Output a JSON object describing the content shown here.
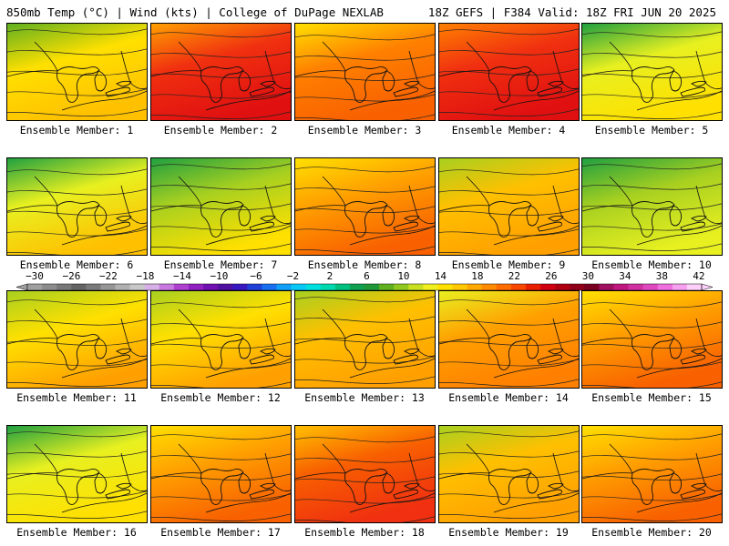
{
  "header": {
    "left_title": "850mb Temp (°C) | Wind (kts) | College of DuPage NEXLAB",
    "right_title": "18Z GEFS | F384 Valid: 18Z FRI JUN 20 2025"
  },
  "panels": [
    {
      "label": "Ensemble Member: 1",
      "level": 0.35
    },
    {
      "label": "Ensemble Member: 2",
      "level": 0.85
    },
    {
      "label": "Ensemble Member: 3",
      "level": 0.65
    },
    {
      "label": "Ensemble Member: 4",
      "level": 0.9
    },
    {
      "label": "Ensemble Member: 5",
      "level": 0.25
    },
    {
      "label": "Ensemble Member: 6",
      "level": 0.3
    },
    {
      "label": "Ensemble Member: 7",
      "level": 0.2
    },
    {
      "label": "Ensemble Member: 8",
      "level": 0.6
    },
    {
      "label": "Ensemble Member: 9",
      "level": 0.45
    },
    {
      "label": "Ensemble Member: 10",
      "level": 0.15
    },
    {
      "label": "Ensemble Member: 11",
      "level": 0.4
    },
    {
      "label": "Ensemble Member: 12",
      "level": 0.4
    },
    {
      "label": "Ensemble Member: 13",
      "level": 0.45
    },
    {
      "label": "Ensemble Member: 14",
      "level": 0.55
    },
    {
      "label": "Ensemble Member: 15",
      "level": 0.6
    },
    {
      "label": "Ensemble Member: 16",
      "level": 0.25
    },
    {
      "label": "Ensemble Member: 17",
      "level": 0.6
    },
    {
      "label": "Ensemble Member: 18",
      "level": 0.75
    },
    {
      "label": "Ensemble Member: 19",
      "level": 0.45
    },
    {
      "label": "Ensemble Member: 20",
      "level": 0.6
    }
  ],
  "colorbar": {
    "tick_labels": [
      "−30",
      "−26",
      "−22",
      "−18",
      "−14",
      "−10",
      "−6",
      "−2",
      "2",
      "6",
      "10",
      "14",
      "18",
      "22",
      "26",
      "30",
      "34",
      "38",
      "42"
    ],
    "colors": [
      "#a0a0a0",
      "#8c8c8c",
      "#787878",
      "#646464",
      "#7a7a7a",
      "#969696",
      "#b0b0b0",
      "#c8c8c8",
      "#d8b0e8",
      "#c878e0",
      "#b040d0",
      "#9020c0",
      "#7010b0",
      "#5010a0",
      "#3818c0",
      "#2040d8",
      "#1870f0",
      "#10a0f8",
      "#08c8f8",
      "#00e0e0",
      "#00d8b0",
      "#00c080",
      "#10a050",
      "#209838",
      "#60b020",
      "#90c820",
      "#c8e020",
      "#f0f020",
      "#ffe000",
      "#ffc800",
      "#ffa800",
      "#ff8c00",
      "#ff6c00",
      "#f84800",
      "#e82000",
      "#d00010",
      "#b00010",
      "#900018",
      "#780020",
      "#a01060",
      "#c01880",
      "#d030a0",
      "#e048c0",
      "#f070e0",
      "#f8a0f0",
      "#fcd0f8"
    ]
  }
}
